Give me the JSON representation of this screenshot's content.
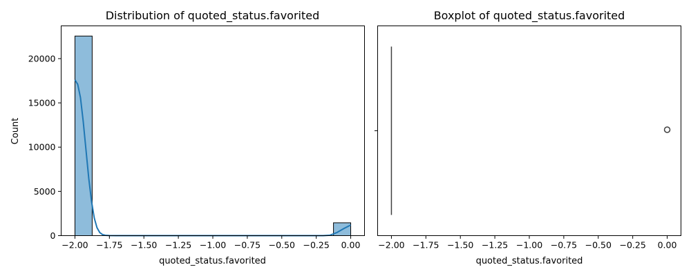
{
  "chart_data": [
    {
      "type": "bar",
      "title": "Distribution of quoted_status.favorited",
      "xlabel": "quoted_status.favorited",
      "ylabel": "Count",
      "xlim": [
        -2.1,
        0.1
      ],
      "ylim": [
        0,
        23700
      ],
      "xticks": [
        -2.0,
        -1.75,
        -1.5,
        -1.25,
        -1.0,
        -0.75,
        -0.5,
        -0.25,
        0.0
      ],
      "xtick_labels": [
        "−2.00",
        "−1.75",
        "−1.50",
        "−1.25",
        "−1.00",
        "−0.75",
        "−0.50",
        "−0.25",
        "0.00"
      ],
      "yticks": [
        0,
        5000,
        10000,
        15000,
        20000
      ],
      "ytick_labels": [
        "0",
        "5000",
        "10000",
        "15000",
        "20000"
      ],
      "bars": [
        {
          "x0": -2.0,
          "x1": -1.875,
          "value": 22550
        },
        {
          "x0": -0.125,
          "x1": 0.0,
          "value": 1450
        }
      ],
      "kde": {
        "x": [
          -2.0,
          -1.98,
          -1.96,
          -1.94,
          -1.92,
          -1.9,
          -1.88,
          -1.86,
          -1.84,
          -1.82,
          -1.8,
          -1.78,
          -1.75,
          -1.7,
          -1.5,
          -1.0,
          -0.5,
          -0.2,
          -0.15,
          -0.1,
          -0.05,
          0.0
        ],
        "y": [
          17600,
          17100,
          15600,
          12900,
          9700,
          6500,
          3900,
          2000,
          900,
          350,
          120,
          40,
          10,
          0,
          0,
          0,
          0,
          0,
          50,
          350,
          800,
          1200
        ]
      },
      "colors": {
        "bar_fill": "#8ebcdb",
        "bar_edge": "#000000",
        "kde_line": "#1f77b4"
      },
      "grid": false
    },
    {
      "type": "box",
      "title": "Boxplot of quoted_status.favorited",
      "xlabel": "quoted_status.favorited",
      "xlim": [
        -2.1,
        0.1
      ],
      "xticks": [
        -2.0,
        -1.75,
        -1.5,
        -1.25,
        -1.0,
        -0.75,
        -0.5,
        -0.25,
        0.0
      ],
      "xtick_labels": [
        "−2.00",
        "−1.75",
        "−1.50",
        "−1.25",
        "−1.00",
        "−0.75",
        "−0.50",
        "−0.25",
        "0.00"
      ],
      "box": {
        "min": -2.0,
        "q1": -2.0,
        "median": -2.0,
        "q3": -2.0,
        "max": -2.0
      },
      "outliers": [
        0.0
      ],
      "colors": {
        "box_line": "#3f3f3f",
        "outlier": "#3f3f3f"
      },
      "grid": false
    }
  ]
}
